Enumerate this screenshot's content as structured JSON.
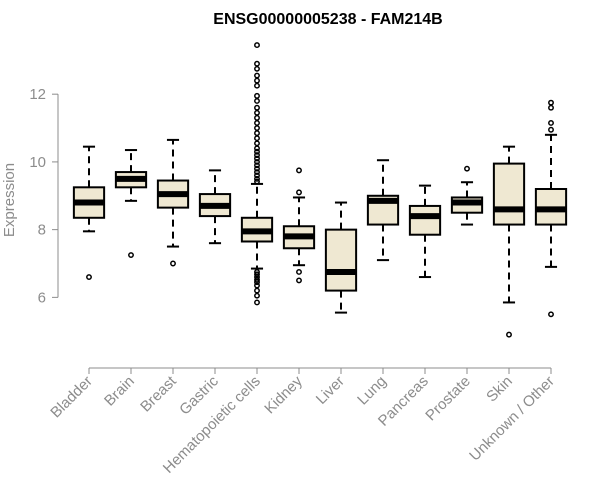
{
  "chart_data": {
    "type": "boxplot",
    "title": "ENSG00000005238 - FAM214B",
    "xlabel": "",
    "ylabel": "Expression",
    "ylim": [
      4.8,
      13.6
    ],
    "yticks": [
      6,
      8,
      10,
      12
    ],
    "box_fill": "#efe8d2",
    "axis_color": "#8c8c8c",
    "categories": [
      "Bladder",
      "Brain",
      "Breast",
      "Gastric",
      "Hematopoietic cells",
      "Kidney",
      "Liver",
      "Lung",
      "Pancreas",
      "Prostate",
      "Skin",
      "Unknown / Other"
    ],
    "series": [
      {
        "q1": 8.35,
        "median": 8.8,
        "q3": 9.25,
        "whisker_low": 7.95,
        "whisker_high": 10.45,
        "outliers": [
          6.6
        ]
      },
      {
        "q1": 9.25,
        "median": 9.5,
        "q3": 9.7,
        "whisker_low": 8.85,
        "whisker_high": 10.35,
        "outliers": [
          7.25
        ]
      },
      {
        "q1": 8.65,
        "median": 9.05,
        "q3": 9.45,
        "whisker_low": 7.5,
        "whisker_high": 10.65,
        "outliers": [
          7.0
        ]
      },
      {
        "q1": 8.4,
        "median": 8.7,
        "q3": 9.05,
        "whisker_low": 7.6,
        "whisker_high": 9.75,
        "outliers": []
      },
      {
        "q1": 7.65,
        "median": 7.95,
        "q3": 8.35,
        "whisker_low": 6.85,
        "whisker_high": 9.35,
        "outliers": [
          13.45,
          12.9,
          12.75,
          12.55,
          12.4,
          12.25,
          11.95,
          11.8,
          11.6,
          11.45,
          11.3,
          11.15,
          11.0,
          10.85,
          10.7,
          10.55,
          10.4,
          10.3,
          10.2,
          10.1,
          10.0,
          9.9,
          9.8,
          9.7,
          9.6,
          9.5,
          9.42,
          6.75,
          6.68,
          6.6,
          6.52,
          6.45,
          6.35,
          6.2,
          6.05,
          5.85
        ]
      },
      {
        "q1": 7.45,
        "median": 7.8,
        "q3": 8.1,
        "whisker_low": 6.95,
        "whisker_high": 8.95,
        "outliers": [
          9.75,
          9.1,
          6.75,
          6.5
        ]
      },
      {
        "q1": 6.2,
        "median": 6.75,
        "q3": 8.0,
        "whisker_low": 5.55,
        "whisker_high": 8.8,
        "outliers": []
      },
      {
        "q1": 8.15,
        "median": 8.85,
        "q3": 9.0,
        "whisker_low": 7.1,
        "whisker_high": 10.05,
        "outliers": []
      },
      {
        "q1": 7.85,
        "median": 8.4,
        "q3": 8.7,
        "whisker_low": 6.6,
        "whisker_high": 9.3,
        "outliers": []
      },
      {
        "q1": 8.5,
        "median": 8.8,
        "q3": 8.95,
        "whisker_low": 8.15,
        "whisker_high": 9.4,
        "outliers": [
          9.8
        ]
      },
      {
        "q1": 8.15,
        "median": 8.6,
        "q3": 9.95,
        "whisker_low": 5.85,
        "whisker_high": 10.45,
        "outliers": [
          4.9
        ]
      },
      {
        "q1": 8.15,
        "median": 8.6,
        "q3": 9.2,
        "whisker_low": 6.9,
        "whisker_high": 10.8,
        "outliers": [
          11.75,
          11.6,
          11.15,
          10.95,
          5.5
        ]
      }
    ]
  }
}
